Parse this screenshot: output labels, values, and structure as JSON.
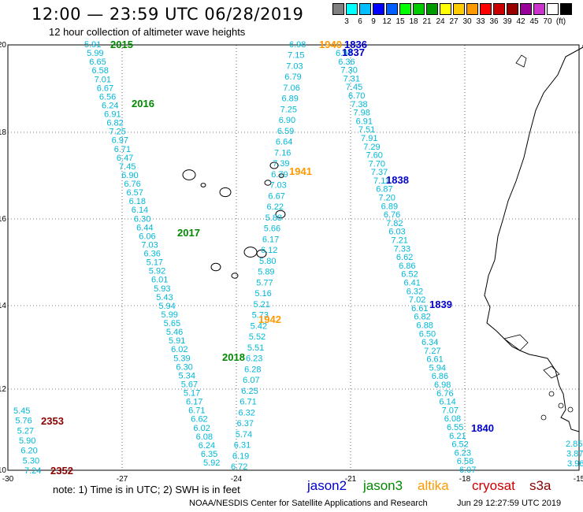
{
  "header": {
    "title": "12:00 — 23:59 UTC 06/28/2019",
    "subtitle": "12 hour collection of altimeter wave heights"
  },
  "color_scale": {
    "colors": [
      "#808080",
      "#00ffff",
      "#00bfff",
      "#0000ff",
      "#0060ff",
      "#00ff00",
      "#00cc00",
      "#009900",
      "#ffff00",
      "#ffcc00",
      "#ff9900",
      "#ff0000",
      "#cc0000",
      "#990000",
      "#990099",
      "#cc33cc",
      "#ffffff",
      "#000000"
    ],
    "labels": [
      "3",
      "6",
      "9",
      "12",
      "15",
      "18",
      "21",
      "24",
      "27",
      "30",
      "33",
      "36",
      "39",
      "42",
      "45",
      "70",
      "(ft)"
    ]
  },
  "axes": {
    "lon_labels": [
      "-30",
      "-27",
      "-24",
      "-21",
      "-18",
      "-15"
    ],
    "lat_labels": [
      "20",
      "18",
      "16",
      "14",
      "12",
      "10"
    ]
  },
  "tracks": [
    {
      "id": "2015",
      "color": "#008800",
      "label": "2015"
    },
    {
      "id": "2016",
      "color": "#008800",
      "label": "2016"
    },
    {
      "id": "2017",
      "color": "#008800",
      "label": "2017"
    },
    {
      "id": "2018",
      "color": "#008800",
      "label": "2018"
    },
    {
      "id": "1940",
      "color": "#ff9900",
      "label": "1940"
    },
    {
      "id": "1941",
      "color": "#ff9900",
      "label": "1941"
    },
    {
      "id": "1942",
      "color": "#ff9900",
      "label": "1942"
    },
    {
      "id": "1836",
      "color": "#0000cc",
      "label": "1836"
    },
    {
      "id": "1837",
      "color": "#0000cc",
      "label": "1837"
    },
    {
      "id": "1838",
      "color": "#0000cc",
      "label": "1838"
    },
    {
      "id": "1839",
      "color": "#0000cc",
      "label": "1839"
    },
    {
      "id": "1840",
      "color": "#0000cc",
      "label": "1840"
    },
    {
      "id": "2352",
      "color": "#880000",
      "label": "2352"
    },
    {
      "id": "2353",
      "color": "#880000",
      "label": "2353"
    }
  ],
  "wave_values": {
    "west_track": [
      "5.91",
      "5.99",
      "6.65",
      "6.58",
      "7.01",
      "6.67",
      "6.56",
      "6.24",
      "6.91",
      "6.82",
      "7.25",
      "6.97",
      "6.71",
      "6.47",
      "7.45",
      "6.90",
      "6.76",
      "6.57",
      "6.18",
      "6.14",
      "6.30",
      "6.44",
      "6.06",
      "7.03",
      "6.36",
      "5.17",
      "5.92",
      "6.01",
      "5.93",
      "5.43",
      "5.94",
      "5.99",
      "5.65",
      "5.46",
      "5.91",
      "6.02",
      "5.39",
      "6.30",
      "5.34",
      "5.67",
      "5.17",
      "6.17",
      "6.71",
      "6.62",
      "6.02",
      "6.08",
      "6.24",
      "6.35",
      "5.92"
    ],
    "middle_track": [
      "6.98",
      "7.15",
      "7.03",
      "6.79",
      "7.06",
      "6.89",
      "7.25",
      "6.90",
      "6.59",
      "6.64",
      "7.16",
      "7.39",
      "6.79",
      "7.03",
      "6.67",
      "6.22",
      "5.88",
      "5.66",
      "6.17",
      "6.12",
      "5.80",
      "5.89",
      "5.77",
      "5.16",
      "5.21",
      "5.73",
      "5.42",
      "5.52",
      "5.51",
      "6.23",
      "6.28",
      "6.07",
      "6.25",
      "6.71",
      "6.32",
      "6.37",
      "5.74",
      "6.31",
      "6.19",
      "6.72"
    ],
    "east_track": [
      "6.97",
      "6.36",
      "7.30",
      "7.31",
      "7.45",
      "6.70",
      "7.38",
      "7.98",
      "6.91",
      "7.51",
      "7.91",
      "7.29",
      "7.60",
      "7.70",
      "7.37",
      "7.11",
      "6.87",
      "7.20",
      "6.89",
      "6.76",
      "7.82",
      "6.03",
      "7.21",
      "7.33",
      "6.62",
      "6.86",
      "6.52",
      "6.41",
      "6.32",
      "7.02",
      "6.61",
      "6.82",
      "6.88",
      "6.50",
      "6.34",
      "7.27",
      "6.61",
      "5.94",
      "6.86",
      "6.98",
      "6.76",
      "6.14",
      "7.07",
      "6.08",
      "6.55",
      "6.21",
      "6.52",
      "6.23",
      "6.58",
      "6.07"
    ],
    "cryosat_track": [
      "5.45",
      "5.76",
      "5.27",
      "5.90",
      "6.20",
      "5.30",
      "7.24"
    ],
    "far_east": [
      "2.85",
      "3.87",
      "3.96"
    ]
  },
  "footer": {
    "note": "note:  1) Time is in UTC;  2) SWH is in feet",
    "satellites": [
      {
        "name": "jason2",
        "color": "#0000cc"
      },
      {
        "name": "jason3",
        "color": "#008800"
      },
      {
        "name": "altika",
        "color": "#ff9900"
      },
      {
        "name": "cryosat",
        "color": "#cc0000"
      },
      {
        "name": "s3a",
        "color": "#880000"
      }
    ],
    "credit": "NOAA/NESDIS Center for Satellite Applications and Research",
    "timestamp": "Jun 29 12:27:59 UTC 2019"
  }
}
